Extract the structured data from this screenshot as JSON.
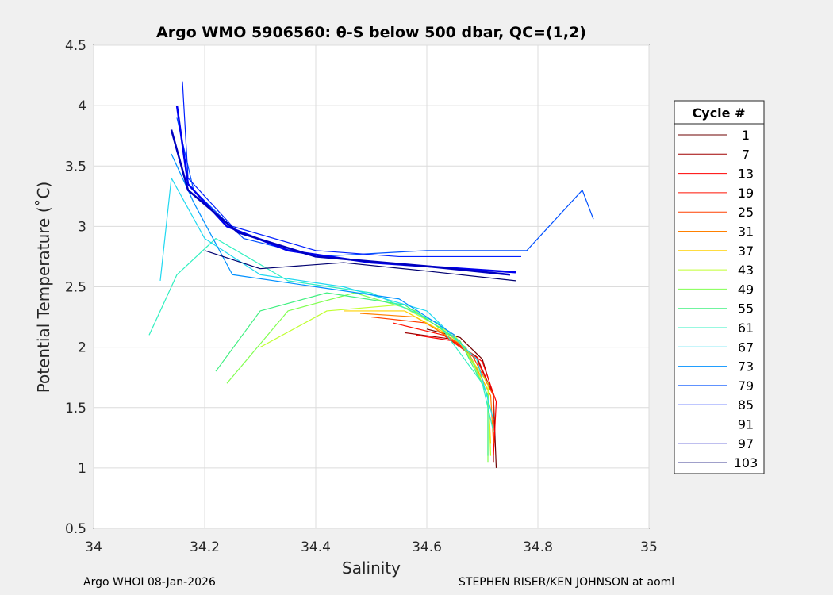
{
  "chart_data": {
    "type": "line",
    "title": "Argo WMO 5906560: θ-S below 500 dbar,  QC=(1,2)",
    "xlabel": "Salinity",
    "ylabel": "Potential Temperature (˚C)",
    "xlim": [
      34,
      35
    ],
    "ylim": [
      0.5,
      4.5
    ],
    "xticks": [
      34,
      34.2,
      34.4,
      34.6,
      34.8,
      35
    ],
    "xtick_labels": [
      "34",
      "34.2",
      "34.4",
      "34.6",
      "34.8",
      "35"
    ],
    "yticks": [
      0.5,
      1,
      1.5,
      2,
      2.5,
      3,
      3.5,
      4,
      4.5
    ],
    "ytick_labels": [
      "0.5",
      "1",
      "1.5",
      "2",
      "2.5",
      "3",
      "3.5",
      "4",
      "4.5"
    ],
    "grid": true,
    "legend": {
      "title": "Cycle #",
      "placement": "right-outside"
    },
    "series": [
      {
        "name": "1",
        "color": "#6e0000",
        "points": [
          [
            34.6,
            2.15
          ],
          [
            34.66,
            2.08
          ],
          [
            34.7,
            1.9
          ],
          [
            34.72,
            1.6
          ],
          [
            34.725,
            1.0
          ]
        ]
      },
      {
        "name": "7",
        "color": "#a00000",
        "points": [
          [
            34.56,
            2.12
          ],
          [
            34.64,
            2.07
          ],
          [
            34.69,
            1.92
          ],
          [
            34.72,
            1.6
          ],
          [
            34.72,
            1.05
          ]
        ]
      },
      {
        "name": "13",
        "color": "#ff0000",
        "points": [
          [
            34.58,
            2.1
          ],
          [
            34.65,
            2.05
          ],
          [
            34.7,
            1.88
          ],
          [
            34.725,
            1.55
          ],
          [
            34.72,
            1.1
          ]
        ]
      },
      {
        "name": "19",
        "color": "#ff1000",
        "points": [
          [
            34.54,
            2.2
          ],
          [
            34.63,
            2.1
          ],
          [
            34.69,
            1.9
          ],
          [
            34.72,
            1.6
          ],
          [
            34.72,
            1.15
          ]
        ]
      },
      {
        "name": "25",
        "color": "#ff4000",
        "points": [
          [
            34.5,
            2.25
          ],
          [
            34.6,
            2.2
          ],
          [
            34.68,
            1.95
          ],
          [
            34.72,
            1.6
          ],
          [
            34.72,
            1.2
          ]
        ]
      },
      {
        "name": "31",
        "color": "#ff8000",
        "points": [
          [
            34.48,
            2.28
          ],
          [
            34.58,
            2.25
          ],
          [
            34.67,
            2.0
          ],
          [
            34.715,
            1.6
          ],
          [
            34.72,
            1.2
          ]
        ]
      },
      {
        "name": "37",
        "color": "#ffd000",
        "points": [
          [
            34.45,
            2.3
          ],
          [
            34.56,
            2.3
          ],
          [
            34.66,
            2.05
          ],
          [
            34.71,
            1.65
          ],
          [
            34.715,
            1.2
          ]
        ]
      },
      {
        "name": "43",
        "color": "#c0ff30",
        "points": [
          [
            34.3,
            2.0
          ],
          [
            34.42,
            2.3
          ],
          [
            34.55,
            2.35
          ],
          [
            34.65,
            2.1
          ],
          [
            34.71,
            1.7
          ],
          [
            34.715,
            1.1
          ]
        ]
      },
      {
        "name": "49",
        "color": "#80ff50",
        "points": [
          [
            34.24,
            1.7
          ],
          [
            34.35,
            2.3
          ],
          [
            34.47,
            2.45
          ],
          [
            34.58,
            2.3
          ],
          [
            34.67,
            2.0
          ],
          [
            34.71,
            1.6
          ],
          [
            34.71,
            1.05
          ]
        ]
      },
      {
        "name": "55",
        "color": "#40f080",
        "points": [
          [
            34.22,
            1.8
          ],
          [
            34.3,
            2.3
          ],
          [
            34.42,
            2.45
          ],
          [
            34.56,
            2.35
          ],
          [
            34.66,
            2.05
          ],
          [
            34.71,
            1.6
          ],
          [
            34.71,
            1.1
          ]
        ]
      },
      {
        "name": "61",
        "color": "#30f0c0",
        "points": [
          [
            34.1,
            2.1
          ],
          [
            34.15,
            2.6
          ],
          [
            34.22,
            2.9
          ],
          [
            34.35,
            2.55
          ],
          [
            34.5,
            2.45
          ],
          [
            34.62,
            2.2
          ],
          [
            34.7,
            1.7
          ],
          [
            34.72,
            1.3
          ]
        ]
      },
      {
        "name": "67",
        "color": "#20d8f0",
        "points": [
          [
            34.12,
            2.55
          ],
          [
            34.14,
            3.4
          ],
          [
            34.2,
            2.9
          ],
          [
            34.3,
            2.6
          ],
          [
            34.45,
            2.5
          ],
          [
            34.6,
            2.3
          ],
          [
            34.69,
            1.9
          ],
          [
            34.72,
            1.4
          ]
        ]
      },
      {
        "name": "73",
        "color": "#0090ff",
        "points": [
          [
            34.14,
            3.6
          ],
          [
            34.18,
            3.2
          ],
          [
            34.25,
            2.6
          ],
          [
            34.4,
            2.5
          ],
          [
            34.55,
            2.4
          ],
          [
            34.65,
            2.1
          ]
        ]
      },
      {
        "name": "79",
        "color": "#0050ff",
        "points": [
          [
            34.15,
            3.9
          ],
          [
            34.18,
            3.3
          ],
          [
            34.27,
            2.9
          ],
          [
            34.4,
            2.75
          ],
          [
            34.6,
            2.8
          ],
          [
            34.78,
            2.8
          ],
          [
            34.88,
            3.3
          ],
          [
            34.9,
            3.06
          ]
        ]
      },
      {
        "name": "85",
        "color": "#0020ff",
        "points": [
          [
            34.16,
            4.2
          ],
          [
            34.17,
            3.4
          ],
          [
            34.25,
            3.0
          ],
          [
            34.4,
            2.8
          ],
          [
            34.55,
            2.75
          ],
          [
            34.77,
            2.75
          ]
        ]
      },
      {
        "name": "91",
        "color": "#0000f0",
        "points": [
          [
            34.15,
            4.0
          ],
          [
            34.17,
            3.35
          ],
          [
            34.24,
            3.0
          ],
          [
            34.35,
            2.8
          ],
          [
            34.5,
            2.7
          ],
          [
            34.76,
            2.62
          ]
        ]
      },
      {
        "name": "97",
        "color": "#0000c0",
        "points": [
          [
            34.14,
            3.8
          ],
          [
            34.17,
            3.3
          ],
          [
            34.26,
            2.95
          ],
          [
            34.4,
            2.75
          ],
          [
            34.6,
            2.67
          ],
          [
            34.75,
            2.6
          ]
        ]
      },
      {
        "name": "103",
        "color": "#000070",
        "points": [
          [
            34.2,
            2.8
          ],
          [
            34.3,
            2.65
          ],
          [
            34.45,
            2.7
          ],
          [
            34.6,
            2.63
          ],
          [
            34.76,
            2.55
          ]
        ]
      }
    ]
  },
  "footer": {
    "left": "Argo WHOI 08-Jan-2026",
    "right": "STEPHEN RISER/KEN JOHNSON at aoml"
  }
}
